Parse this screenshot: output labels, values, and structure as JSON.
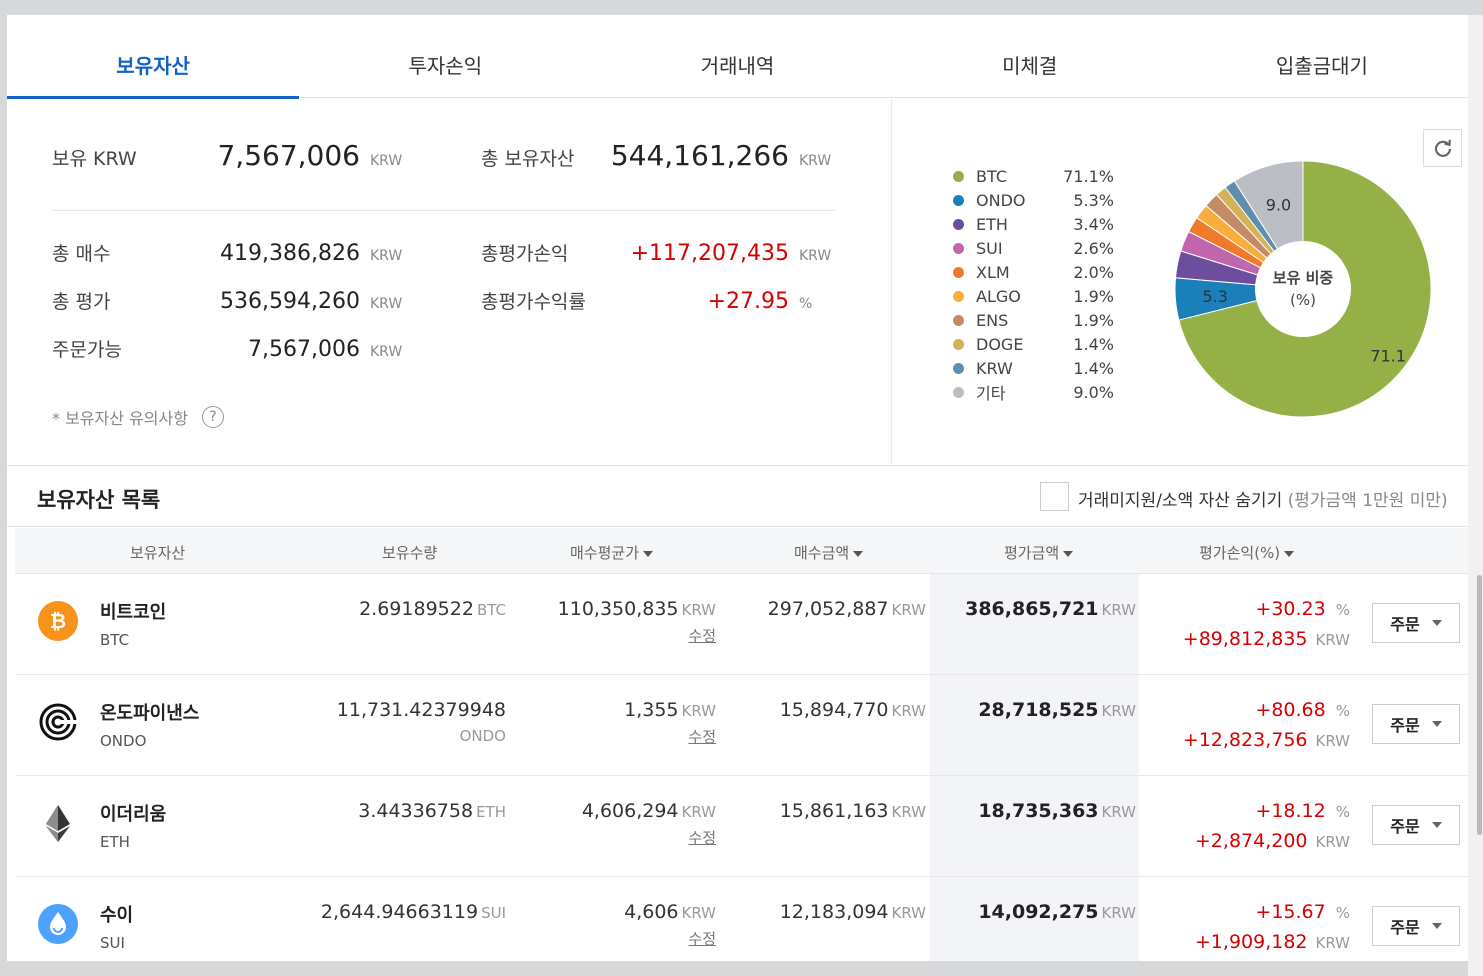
{
  "tabs": [
    "보유자산",
    "투자손익",
    "거래내역",
    "미체결",
    "입출금대기"
  ],
  "summary": {
    "krw_label": "보유 KRW",
    "krw_value": "7,567,006",
    "total_label": "총 보유자산",
    "total_value": "544,161,266",
    "buy_label": "총 매수",
    "buy_value": "419,386,826",
    "pnl_label": "총평가손익",
    "pnl_value": "+117,207,435",
    "eval_label": "총 평가",
    "eval_value": "536,594,260",
    "rate_label": "총평가수익률",
    "rate_value": "+27.95",
    "rate_unit": "%",
    "avail_label": "주문가능",
    "avail_value": "7,567,006",
    "unit": "KRW",
    "notice": "* 보유자산 유의사항",
    "question_icon": "?"
  },
  "chart_data": {
    "type": "pie",
    "center_label_1": "보유 비중",
    "center_label_2": "(%)",
    "slices": [
      {
        "name": "BTC",
        "value": 71.1,
        "pct": "71.1%",
        "color": "#94b046"
      },
      {
        "name": "ONDO",
        "value": 5.3,
        "pct": "5.3%",
        "color": "#1b7fb9"
      },
      {
        "name": "ETH",
        "value": 3.4,
        "pct": "3.4%",
        "color": "#6c4e9c"
      },
      {
        "name": "SUI",
        "value": 2.6,
        "pct": "2.6%",
        "color": "#c166ad"
      },
      {
        "name": "XLM",
        "value": 2.0,
        "pct": "2.0%",
        "color": "#f07a2a"
      },
      {
        "name": "ALGO",
        "value": 1.9,
        "pct": "1.9%",
        "color": "#f9ad3b"
      },
      {
        "name": "ENS",
        "value": 1.9,
        "pct": "1.9%",
        "color": "#c38c66"
      },
      {
        "name": "DOGE",
        "value": 1.4,
        "pct": "1.4%",
        "color": "#d4b25a"
      },
      {
        "name": "KRW",
        "value": 1.4,
        "pct": "1.4%",
        "color": "#5f8fad"
      },
      {
        "name": "기타",
        "value": 9.0,
        "pct": "9.0%",
        "color": "#bbbec4"
      }
    ],
    "slice_labels": [
      {
        "text": "71.1"
      },
      {
        "text": "5.3"
      },
      {
        "text": "9.0"
      }
    ]
  },
  "list": {
    "title": "보유자산 목록",
    "hide_label": "거래미지원/소액 자산 숨기기",
    "hide_sub": "(평가금액 1만원 미만)"
  },
  "columns": [
    "보유자산",
    "보유수량",
    "매수평균가",
    "매수금액",
    "평가금액",
    "평가손익(%)"
  ],
  "rows": [
    {
      "name": "비트코인",
      "symbol": "BTC",
      "qty": "2.69189522",
      "qty_unit": "BTC",
      "avg": "110,350,835",
      "buy": "297,052,887",
      "eval": "386,865,721",
      "pct": "+30.23",
      "pnl": "+89,812,835",
      "icon_color": "#f7931a",
      "icon": "btc-icon"
    },
    {
      "name": "온도파이낸스",
      "symbol": "ONDO",
      "qty": "11,731.42379948",
      "qty_unit": "ONDO",
      "avg": "1,355",
      "buy": "15,894,770",
      "eval": "28,718,525",
      "pct": "+80.68",
      "pnl": "+12,823,756",
      "icon_color": "#ffffff",
      "icon": "ondo-icon"
    },
    {
      "name": "이더리움",
      "symbol": "ETH",
      "qty": "3.44336758",
      "qty_unit": "ETH",
      "avg": "4,606,294",
      "buy": "15,861,163",
      "eval": "18,735,363",
      "pct": "+18.12",
      "pnl": "+2,874,200",
      "icon_color": "#ffffff",
      "icon": "eth-icon"
    },
    {
      "name": "수이",
      "symbol": "SUI",
      "qty": "2,644.94663119",
      "qty_unit": "SUI",
      "avg": "4,606",
      "buy": "12,183,094",
      "eval": "14,092,275",
      "pct": "+15.67",
      "pnl": "+1,909,182",
      "icon_color": "#4da2ff",
      "icon": "sui-icon"
    }
  ],
  "row_labels": {
    "unit": "KRW",
    "pct_unit": "%",
    "edit": "수정",
    "order": "주문"
  }
}
